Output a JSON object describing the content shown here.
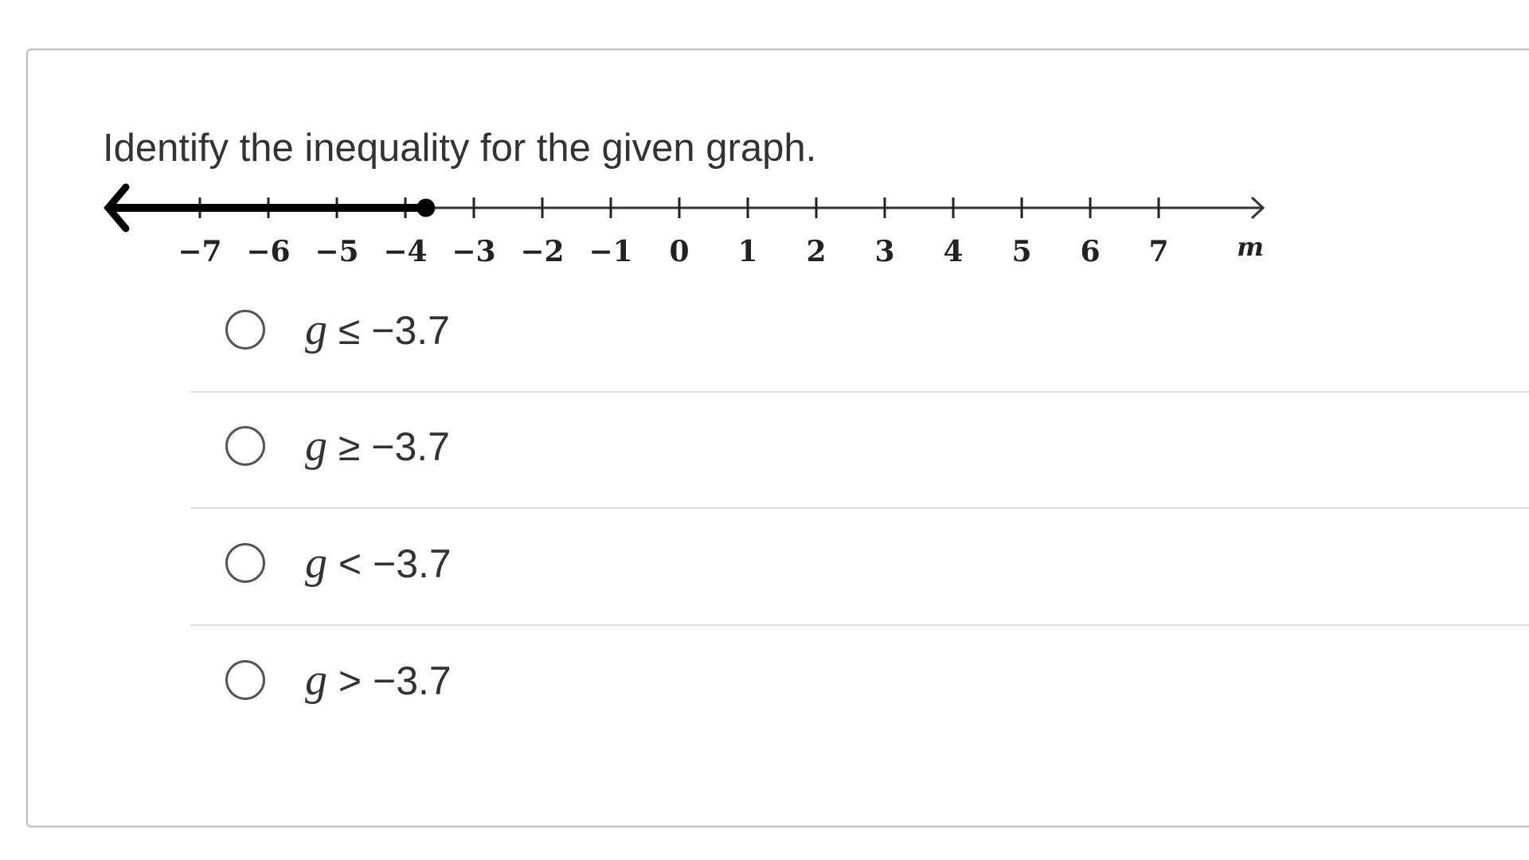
{
  "question": {
    "prompt": "Identify the inequality for the given graph."
  },
  "number_line": {
    "ticks": [
      -7,
      -6,
      -5,
      -4,
      -3,
      -2,
      -1,
      0,
      1,
      2,
      3,
      4,
      5,
      6,
      7
    ],
    "tick_labels": [
      "−7",
      "−6",
      "−5",
      "−4",
      "−3",
      "−2",
      "−1",
      "0",
      "1",
      "2",
      "3",
      "4",
      "5",
      "6",
      "7"
    ],
    "variable_label": "m",
    "endpoint": -3.7,
    "endpoint_style": "closed",
    "shaded_direction": "left",
    "line_color": "#000000"
  },
  "options": [
    {
      "variable": "g",
      "relation": "≤",
      "value": "−3.7"
    },
    {
      "variable": "g",
      "relation": "≥",
      "value": "−3.7"
    },
    {
      "variable": "g",
      "relation": "<",
      "value": "−3.7"
    },
    {
      "variable": "g",
      "relation": ">",
      "value": "−3.7"
    }
  ]
}
